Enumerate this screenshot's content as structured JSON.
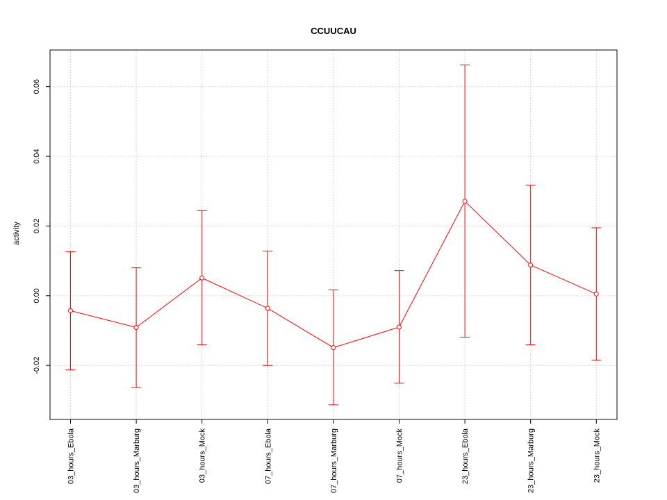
{
  "chart_data": {
    "type": "line",
    "title": "CCUUCAU",
    "xlabel": "",
    "ylabel": "activity",
    "categories": [
      "03_hours_Ebola",
      "03_hours_Marburg",
      "03_hours_Mock",
      "07_hours_Ebola",
      "07_hours_Marburg",
      "07_hours_Mock",
      "23_hours_Ebola",
      "23_hours_Marburg",
      "23_hours_Mock"
    ],
    "ylim": [
      -0.0355,
      0.0705
    ],
    "yticks": [
      -0.02,
      0.0,
      0.02,
      0.04,
      0.06
    ],
    "ytick_labels": [
      "-0.02",
      "0.00",
      "0.02",
      "0.04",
      "0.06"
    ],
    "grid": true,
    "series": [
      {
        "values": [
          -0.0043,
          -0.0091,
          0.0051,
          -0.0036,
          -0.0149,
          -0.009,
          0.0271,
          0.0088,
          0.0005
        ],
        "lower": [
          -0.0213,
          -0.0263,
          -0.0141,
          -0.02,
          -0.0313,
          -0.0251,
          -0.0119,
          -0.0141,
          -0.0185
        ],
        "upper": [
          0.0126,
          0.008,
          0.0244,
          0.0128,
          0.0017,
          0.0072,
          0.0662,
          0.0317,
          0.0195
        ],
        "color": "#ff0000"
      }
    ]
  }
}
